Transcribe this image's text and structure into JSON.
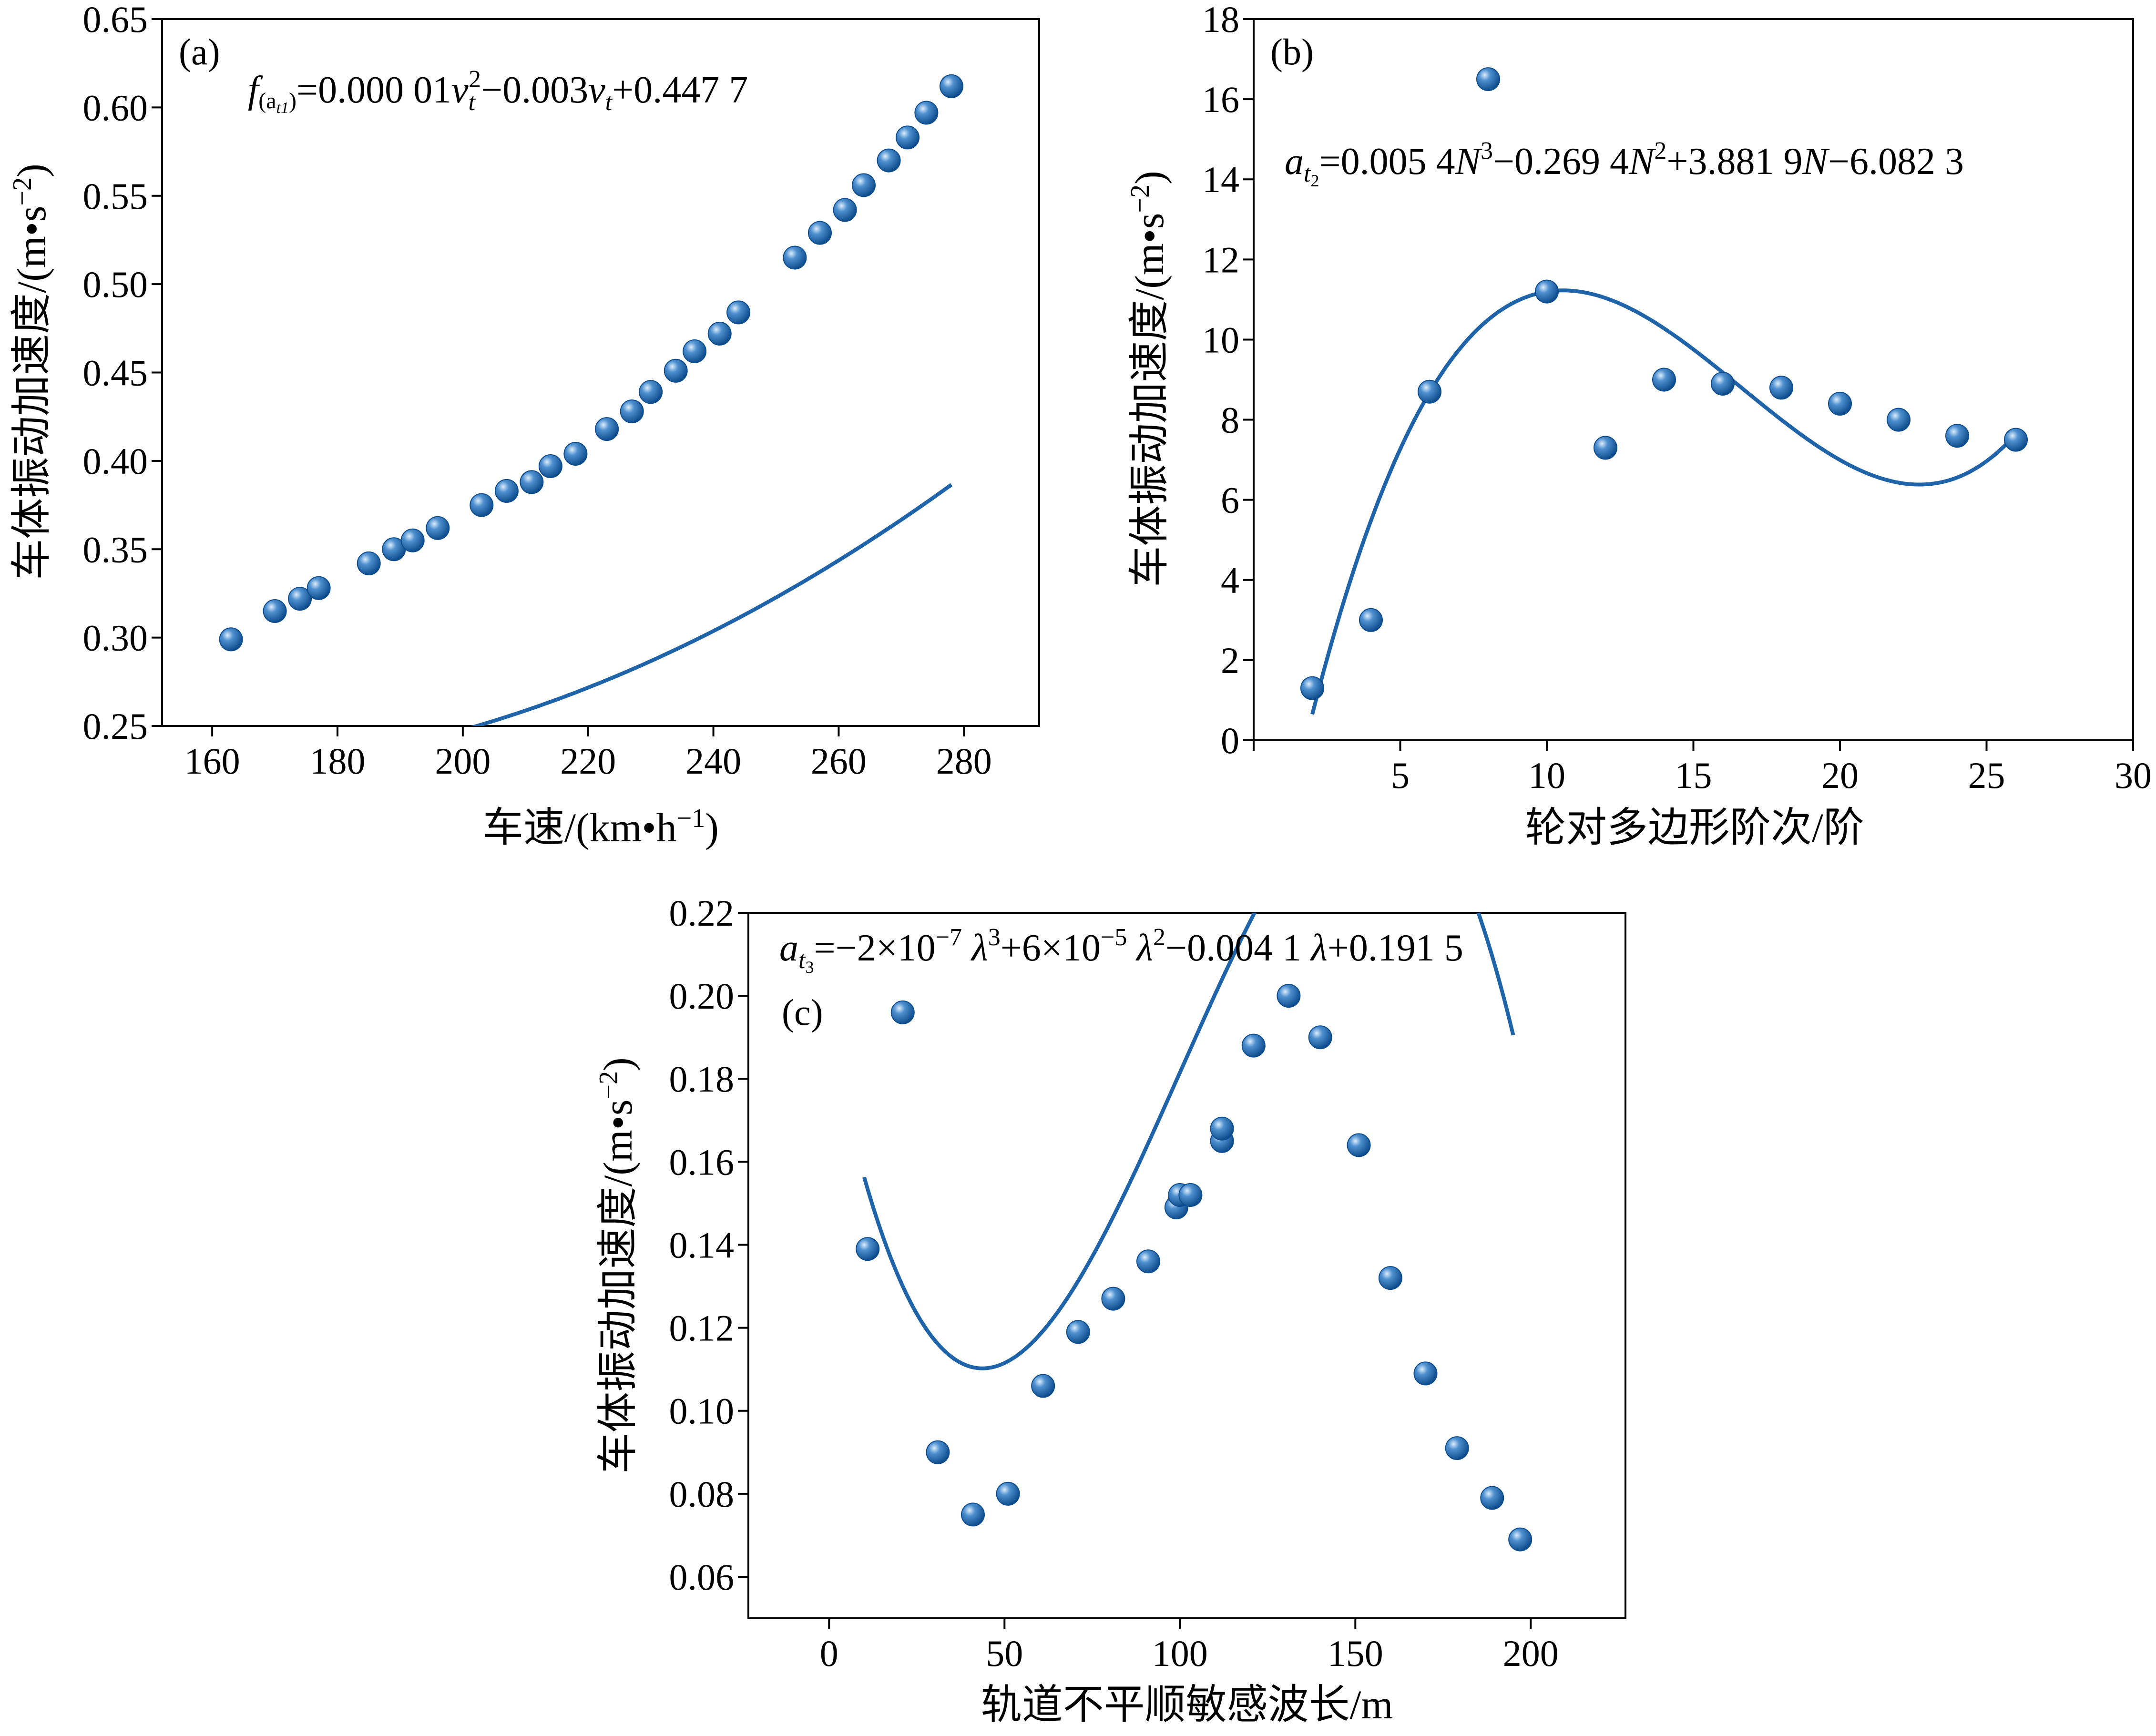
{
  "colors": {
    "series": "#1f64a8",
    "marker_dark": "#0d4c8c",
    "marker_light": "#cfe4f7",
    "axis": "#000000"
  },
  "chart_data": [
    {
      "id": "a",
      "type": "scatter",
      "panel_label": "(a)",
      "formula": {
        "f_label": "f",
        "sub_open": "(a",
        "sub_sub": "t1",
        "sub_close": ")",
        "eq1": "=0.000 01",
        "v1": "v",
        "v1_sub": "t",
        "v1_sup": "2",
        "eq2": "−0.003",
        "v2": "v",
        "v2_sub": "t",
        "eq3": "+0.447 7"
      },
      "xlabel": "车速/(km•h",
      "xlabel_sup": "−1",
      "xlabel_end": ")",
      "ylabel": "车体振动加速度/(m•s",
      "ylabel_sup": "−2",
      "ylabel_end": ")",
      "xlim": [
        152,
        292
      ],
      "ylim": [
        0.25,
        0.65
      ],
      "xticks": [
        160,
        180,
        200,
        220,
        240,
        260,
        280
      ],
      "yticks": [
        0.25,
        0.3,
        0.35,
        0.4,
        0.45,
        0.5,
        0.55,
        0.6,
        0.65
      ],
      "xtick_labels": [
        "160",
        "180",
        "200",
        "220",
        "240",
        "260",
        "280"
      ],
      "ytick_labels": [
        "0.25",
        "0.30",
        "0.35",
        "0.40",
        "0.45",
        "0.50",
        "0.55",
        "0.60",
        "0.65"
      ],
      "points": [
        [
          163,
          0.299
        ],
        [
          170,
          0.315
        ],
        [
          174,
          0.322
        ],
        [
          177,
          0.328
        ],
        [
          185,
          0.342
        ],
        [
          189,
          0.35
        ],
        [
          192,
          0.355
        ],
        [
          196,
          0.362
        ],
        [
          203,
          0.375
        ],
        [
          207,
          0.383
        ],
        [
          211,
          0.388
        ],
        [
          214,
          0.397
        ],
        [
          218,
          0.404
        ],
        [
          223,
          0.418
        ],
        [
          227,
          0.428
        ],
        [
          230,
          0.439
        ],
        [
          234,
          0.451
        ],
        [
          237,
          0.462
        ],
        [
          241,
          0.472
        ],
        [
          244,
          0.484
        ],
        [
          253,
          0.515
        ],
        [
          257,
          0.529
        ],
        [
          261,
          0.542
        ],
        [
          264,
          0.556
        ],
        [
          268,
          0.57
        ],
        [
          271,
          0.583
        ],
        [
          274,
          0.597
        ],
        [
          278,
          0.612
        ]
      ],
      "fit": {
        "coeffs_high_to_low": [
          1e-05,
          -0.003,
          0.4477
        ],
        "x_range": [
          163,
          278
        ]
      }
    },
    {
      "id": "b",
      "type": "scatter",
      "panel_label": "(b)",
      "formula": {
        "a_label": "a",
        "a_sub": "t",
        "a_subsub": "2",
        "t1": "=0.005 4",
        "n1": "N",
        "s1": "3",
        "t2": "−0.269 4",
        "n2": "N",
        "s2": "2",
        "t3": "+3.881 9",
        "n3": "N",
        "t4": "−6.082 3"
      },
      "xlabel": "轮对多边形阶次/阶",
      "ylabel": "车体振动加速度/(m•s",
      "ylabel_sup": "−2",
      "ylabel_end": ")",
      "xlim": [
        0,
        30
      ],
      "ylim": [
        0,
        18
      ],
      "xticks": [
        0,
        5,
        10,
        15,
        20,
        25,
        30
      ],
      "yticks": [
        0,
        2,
        4,
        6,
        8,
        10,
        12,
        14,
        16,
        18
      ],
      "xtick_labels": [
        "",
        "5",
        "10",
        "15",
        "20",
        "25",
        "30"
      ],
      "ytick_labels": [
        "0",
        "2",
        "4",
        "6",
        "8",
        "10",
        "12",
        "14",
        "16",
        "18"
      ],
      "points": [
        [
          2,
          1.3
        ],
        [
          4,
          3.0
        ],
        [
          6,
          8.7
        ],
        [
          8,
          16.5
        ],
        [
          10,
          11.2
        ],
        [
          12,
          7.3
        ],
        [
          14,
          9.0
        ],
        [
          16,
          8.9
        ],
        [
          18,
          8.8
        ],
        [
          20,
          8.4
        ],
        [
          22,
          8.0
        ],
        [
          24,
          7.6
        ],
        [
          26,
          7.5
        ]
      ],
      "fit": {
        "coeffs_high_to_low": [
          0.0054,
          -0.2694,
          3.8819,
          -6.0823
        ],
        "x_range": [
          2,
          26
        ]
      }
    },
    {
      "id": "c",
      "type": "scatter",
      "panel_label": "(c)",
      "formula": {
        "a_label": "a",
        "a_sub": "t",
        "a_subsub": "3",
        "t1": "=−2×10",
        "e1": "−7",
        "l1": " λ",
        "p1": "3",
        "t2": "+6×10",
        "e2": "−5",
        "l2": " λ",
        "p2": "2",
        "t3": "−0.004 1",
        "l3": " λ",
        "t4": "+0.191 5"
      },
      "xlabel": "轨道不平顺敏感波长/m",
      "ylabel": "车体振动加速度/(m•s",
      "ylabel_sup": "−2",
      "ylabel_end": ")",
      "xlim": [
        -23,
        227
      ],
      "ylim": [
        0.05,
        0.22
      ],
      "xticks": [
        0,
        50,
        100,
        150,
        200
      ],
      "yticks": [
        0.06,
        0.08,
        0.1,
        0.12,
        0.14,
        0.16,
        0.18,
        0.2,
        0.22
      ],
      "xtick_labels": [
        "0",
        "50",
        "100",
        "150",
        "200"
      ],
      "ytick_labels": [
        "0.06",
        "0.08",
        "0.10",
        "0.12",
        "0.14",
        "0.16",
        "0.18",
        "0.20",
        "0.22"
      ],
      "points": [
        [
          11,
          0.139
        ],
        [
          21,
          0.196
        ],
        [
          31,
          0.09
        ],
        [
          41,
          0.075
        ],
        [
          51,
          0.08
        ],
        [
          61,
          0.106
        ],
        [
          71,
          0.119
        ],
        [
          81,
          0.127
        ],
        [
          91,
          0.136
        ],
        [
          99,
          0.149
        ],
        [
          100,
          0.152
        ],
        [
          103,
          0.152
        ],
        [
          112,
          0.165
        ],
        [
          112,
          0.168
        ],
        [
          121,
          0.188
        ],
        [
          131,
          0.2
        ],
        [
          140,
          0.19
        ],
        [
          151,
          0.164
        ],
        [
          160,
          0.132
        ],
        [
          170,
          0.109
        ],
        [
          179,
          0.091
        ],
        [
          189,
          0.079
        ],
        [
          197,
          0.069
        ]
      ],
      "fit": {
        "coeffs_high_to_low": [
          -2e-07,
          6e-05,
          -0.0041,
          0.1915
        ],
        "x_range": [
          10,
          195
        ]
      }
    }
  ]
}
